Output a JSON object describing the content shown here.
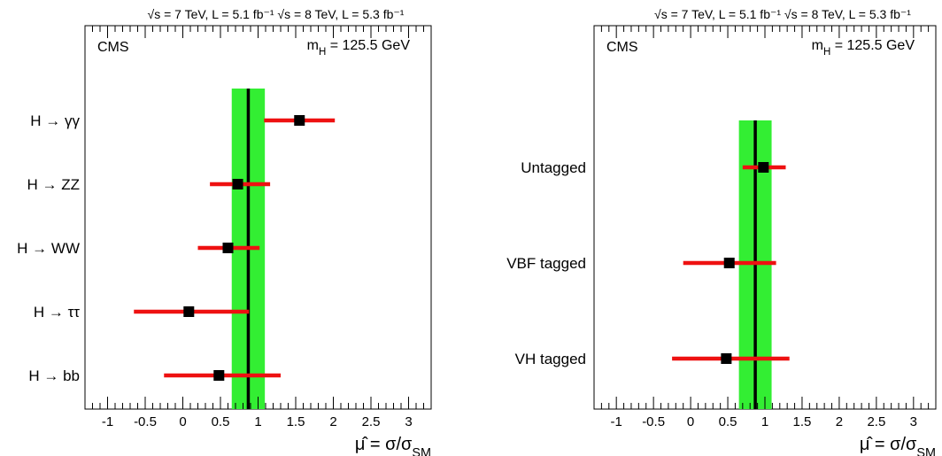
{
  "chart_data": [
    {
      "type": "scatter",
      "subtype": "forest-plot",
      "header": "√s = 7 TeV, L = 5.1 fb⁻¹  √s = 8 TeV, L = 5.3 fb⁻¹",
      "experiment_label": "CMS",
      "mass_label": "m_H = 125.5 GeV",
      "xlabel": "μ̂ = σ/σ_SM",
      "xlim": [
        -1.3,
        3.3
      ],
      "xticks": [
        -1,
        -0.5,
        0,
        0.5,
        1,
        1.5,
        2,
        2.5,
        3
      ],
      "xtick_labels": [
        "-1",
        "-0.5",
        "0",
        "0.5",
        "1",
        "1.5",
        "2",
        "2.5",
        "3"
      ],
      "combined": {
        "value": 0.87,
        "band_low": 0.65,
        "band_high": 1.09
      },
      "band_color": "#33ee33",
      "point_color": "#000000",
      "error_color": "#ee1111",
      "categories": [
        "H → γγ",
        "H → ZZ",
        "H → WW",
        "H → ττ",
        "H → bb"
      ],
      "values": [
        1.55,
        0.73,
        0.6,
        0.08,
        0.48
      ],
      "err_low": [
        1.08,
        0.36,
        0.2,
        -0.65,
        -0.25
      ],
      "err_high": [
        2.02,
        1.16,
        1.02,
        0.88,
        1.3
      ]
    },
    {
      "type": "scatter",
      "subtype": "forest-plot",
      "header": "√s = 7 TeV, L = 5.1 fb⁻¹  √s = 8 TeV, L = 5.3 fb⁻¹",
      "experiment_label": "CMS",
      "mass_label": "m_H = 125.5 GeV",
      "xlabel": "μ̂ = σ/σ_SM",
      "xlim": [
        -1.3,
        3.3
      ],
      "xticks": [
        -1,
        -0.5,
        0,
        0.5,
        1,
        1.5,
        2,
        2.5,
        3
      ],
      "xtick_labels": [
        "-1",
        "-0.5",
        "0",
        "0.5",
        "1",
        "1.5",
        "2",
        "2.5",
        "3"
      ],
      "combined": {
        "value": 0.87,
        "band_low": 0.65,
        "band_high": 1.09
      },
      "band_color": "#33ee33",
      "point_color": "#000000",
      "error_color": "#ee1111",
      "categories": [
        "Untagged",
        "VBF tagged",
        "VH tagged"
      ],
      "values": [
        0.98,
        0.52,
        0.48
      ],
      "err_low": [
        0.7,
        -0.1,
        -0.25
      ],
      "err_high": [
        1.28,
        1.15,
        1.33
      ]
    }
  ]
}
